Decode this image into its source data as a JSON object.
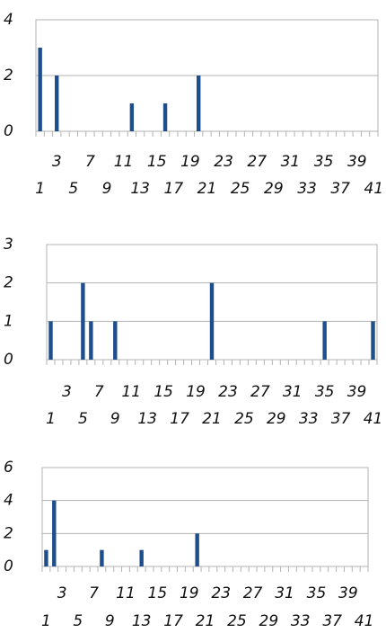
{
  "chart_data": [
    {
      "type": "bar",
      "color": "#1f4e8c",
      "grid": true,
      "ylim": [
        0,
        4
      ],
      "yticks": [
        0,
        2,
        4
      ],
      "categories": [
        "1",
        null,
        "3",
        null,
        "5",
        null,
        "7",
        null,
        "9",
        null,
        "11",
        null,
        "13",
        null,
        "15",
        null,
        "17",
        null,
        "19",
        null,
        "21",
        null,
        "23",
        null,
        "25",
        null,
        "27",
        null,
        "29",
        null,
        "31",
        null,
        "33",
        null,
        "35",
        null,
        "37",
        null,
        "39",
        null,
        "41"
      ],
      "values": [
        3,
        0,
        2,
        0,
        0,
        0,
        0,
        0,
        0,
        0,
        0,
        1,
        0,
        0,
        0,
        1,
        0,
        0,
        0,
        2,
        0,
        0,
        0,
        0,
        0,
        0,
        0,
        0,
        0,
        0,
        0,
        0,
        0,
        0,
        0,
        0,
        0,
        0,
        0,
        0,
        0
      ]
    },
    {
      "type": "bar",
      "color": "#1f4e8c",
      "grid": true,
      "ylim": [
        0,
        3
      ],
      "yticks": [
        0,
        1,
        2,
        3
      ],
      "categories": [
        "1",
        null,
        "3",
        null,
        "5",
        null,
        "7",
        null,
        "9",
        null,
        "11",
        null,
        "13",
        null,
        "15",
        null,
        "17",
        null,
        "19",
        null,
        "21",
        null,
        "23",
        null,
        "25",
        null,
        "27",
        null,
        "29",
        null,
        "31",
        null,
        "33",
        null,
        "35",
        null,
        "37",
        null,
        "39",
        null,
        "41"
      ],
      "values": [
        1,
        0,
        0,
        0,
        2,
        1,
        0,
        0,
        1,
        0,
        0,
        0,
        0,
        0,
        0,
        0,
        0,
        0,
        0,
        0,
        2,
        0,
        0,
        0,
        0,
        0,
        0,
        0,
        0,
        0,
        0,
        0,
        0,
        0,
        1,
        0,
        0,
        0,
        0,
        0,
        1
      ]
    },
    {
      "type": "bar",
      "color": "#1f4e8c",
      "grid": true,
      "ylim": [
        0,
        6
      ],
      "yticks": [
        0,
        2,
        4,
        6
      ],
      "categories": [
        "1",
        null,
        "3",
        null,
        "5",
        null,
        "7",
        null,
        "9",
        null,
        "11",
        null,
        "13",
        null,
        "15",
        null,
        "17",
        null,
        "19",
        null,
        "21",
        null,
        "23",
        null,
        "25",
        null,
        "27",
        null,
        "29",
        null,
        "31",
        null,
        "33",
        null,
        "35",
        null,
        "37",
        null,
        "39",
        null,
        "41"
      ],
      "values": [
        1,
        4,
        0,
        0,
        0,
        0,
        0,
        1,
        0,
        0,
        0,
        0,
        1,
        0,
        0,
        0,
        0,
        0,
        0,
        2,
        0,
        0,
        0,
        0,
        0,
        0,
        0,
        0,
        0,
        0,
        0,
        0,
        0,
        0,
        0,
        0,
        0,
        0,
        0,
        0,
        0
      ]
    }
  ]
}
